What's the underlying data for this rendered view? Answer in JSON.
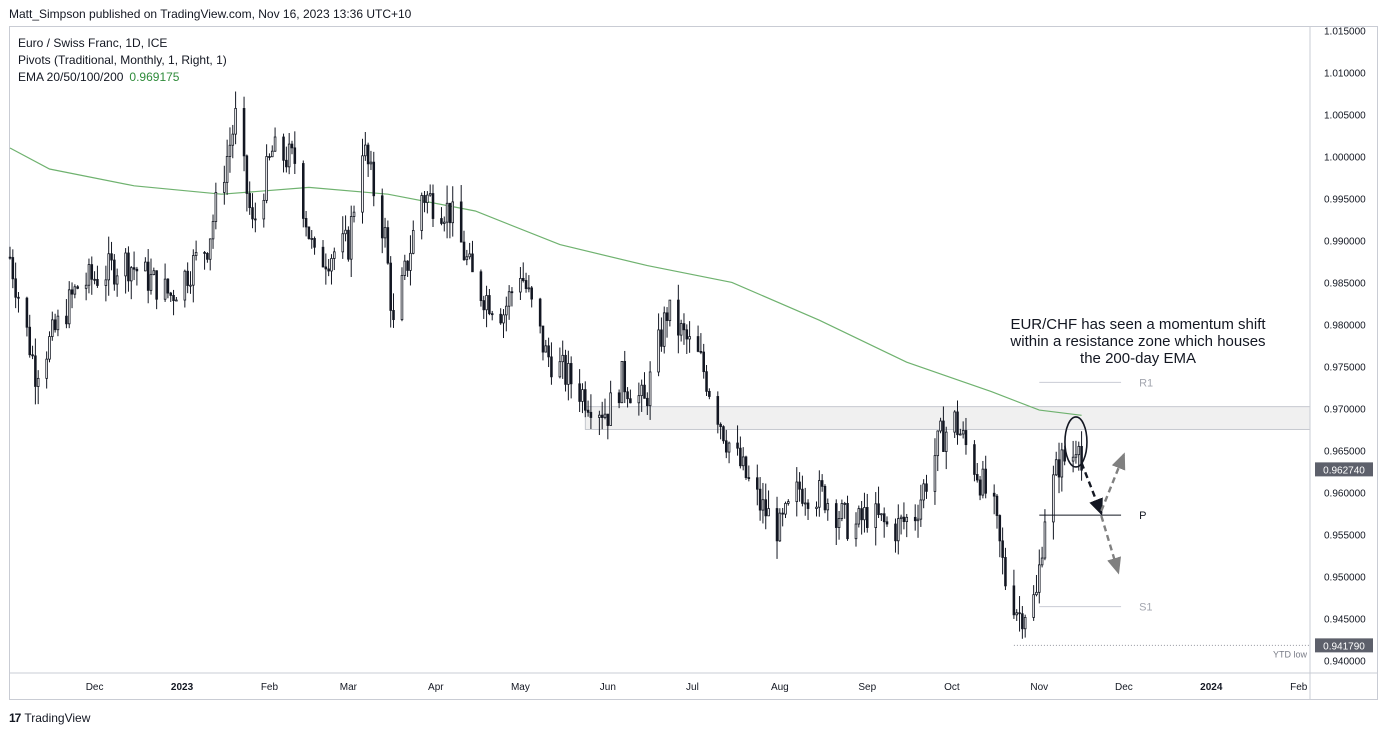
{
  "header": {
    "published": "Matt_Simpson published on TradingView.com, Nov 16, 2023 13:36 UTC+10"
  },
  "legend": {
    "symbol": "Euro / Swiss Franc, 1D, ICE",
    "pivots": "Pivots (Traditional, Monthly, 1, Right, 1)",
    "ema_label": "EMA 20/50/100/200",
    "ema_value": "0.969175"
  },
  "annotation": {
    "text": "EUR/CHF has seen a momentum shift within a resistance zone which houses the 200-day EMA"
  },
  "footer": {
    "brand": "TradingView",
    "logo": "17"
  },
  "colors": {
    "candle": "#131722",
    "ema": "#6fb26f",
    "zone": "#f0f0f0",
    "price_tag": "#5d606b",
    "arrow": "#808080"
  },
  "chart_data": {
    "type": "candlestick",
    "title": "Euro / Swiss Franc, 1D, ICE",
    "ylim": [
      0.9385,
      1.0154
    ],
    "y_ticks": [
      {
        "value": 0.94,
        "label": "0.940000"
      },
      {
        "value": 0.945,
        "label": "0.945000"
      },
      {
        "value": 0.95,
        "label": "0.950000"
      },
      {
        "value": 0.955,
        "label": "0.955000"
      },
      {
        "value": 0.96,
        "label": "0.960000"
      },
      {
        "value": 0.965,
        "label": "0.965000"
      },
      {
        "value": 0.97,
        "label": "0.970000"
      },
      {
        "value": 0.975,
        "label": "0.975000"
      },
      {
        "value": 0.98,
        "label": "0.980000"
      },
      {
        "value": 0.985,
        "label": "0.985000"
      },
      {
        "value": 0.99,
        "label": "0.990000"
      },
      {
        "value": 0.995,
        "label": "0.995000"
      },
      {
        "value": 1.0,
        "label": "1.000000"
      },
      {
        "value": 1.005,
        "label": "1.005000"
      },
      {
        "value": 1.01,
        "label": "1.010000"
      },
      {
        "value": 1.015,
        "label": "1.015000"
      }
    ],
    "x_ticks": [
      {
        "label": "Dec",
        "date": "2022-12-01"
      },
      {
        "label": "2023",
        "date": "2023-01-01"
      },
      {
        "label": "Feb",
        "date": "2023-02-01"
      },
      {
        "label": "Mar",
        "date": "2023-03-01"
      },
      {
        "label": "Apr",
        "date": "2023-04-01"
      },
      {
        "label": "May",
        "date": "2023-05-01"
      },
      {
        "label": "Jun",
        "date": "2023-06-01"
      },
      {
        "label": "Jul",
        "date": "2023-07-01"
      },
      {
        "label": "Aug",
        "date": "2023-08-01"
      },
      {
        "label": "Sep",
        "date": "2023-09-01"
      },
      {
        "label": "Oct",
        "date": "2023-10-01"
      },
      {
        "label": "Nov",
        "date": "2023-11-01"
      },
      {
        "label": "Dec",
        "date": "2023-12-01"
      },
      {
        "label": "2024",
        "date": "2024-01-01"
      },
      {
        "label": "Feb",
        "date": "2024-02-01"
      }
    ],
    "xlim": [
      "2022-11-01",
      "2024-02-05"
    ],
    "price_anchors": [
      [
        "2022-11-01",
        0.988
      ],
      [
        "2022-11-10",
        0.9745
      ],
      [
        "2022-11-25",
        0.9845
      ],
      [
        "2022-12-12",
        0.9875
      ],
      [
        "2022-12-28",
        0.9835
      ],
      [
        "2023-01-10",
        0.9895
      ],
      [
        "2023-01-20",
        1.0045
      ],
      [
        "2023-01-26",
        0.9915
      ],
      [
        "2023-02-02",
        1.0005
      ],
      [
        "2023-02-10",
        0.9995
      ],
      [
        "2023-02-17",
        0.9875
      ],
      [
        "2023-03-01",
        0.9895
      ],
      [
        "2023-03-06",
        1.0015
      ],
      [
        "2023-03-14",
        0.9905
      ],
      [
        "2023-03-17",
        0.9795
      ],
      [
        "2023-03-27",
        0.9955
      ],
      [
        "2023-04-06",
        0.9935
      ],
      [
        "2023-04-15",
        0.9845
      ],
      [
        "2023-04-25",
        0.9815
      ],
      [
        "2023-05-01",
        0.9865
      ],
      [
        "2023-05-10",
        0.9765
      ],
      [
        "2023-05-24",
        0.9715
      ],
      [
        "2023-06-01",
        0.9695
      ],
      [
        "2023-06-06",
        0.9735
      ],
      [
        "2023-06-14",
        0.9705
      ],
      [
        "2023-06-22",
        0.9815
      ],
      [
        "2023-07-04",
        0.9755
      ],
      [
        "2023-07-08",
        0.9715
      ],
      [
        "2023-07-13",
        0.9665
      ],
      [
        "2023-07-25",
        0.9585
      ],
      [
        "2023-08-01",
        0.9555
      ],
      [
        "2023-08-08",
        0.9605
      ],
      [
        "2023-08-17",
        0.9595
      ],
      [
        "2023-08-27",
        0.9555
      ],
      [
        "2023-09-01",
        0.9575
      ],
      [
        "2023-09-10",
        0.9555
      ],
      [
        "2023-09-18",
        0.9575
      ],
      [
        "2023-09-27",
        0.9665
      ],
      [
        "2023-10-02",
        0.9685
      ],
      [
        "2023-10-10",
        0.9625
      ],
      [
        "2023-10-16",
        0.9575
      ],
      [
        "2023-10-20",
        0.9495
      ],
      [
        "2023-10-25",
        0.9455
      ],
      [
        "2023-10-31",
        0.9475
      ],
      [
        "2023-11-03",
        0.9575
      ],
      [
        "2023-11-08",
        0.9635
      ],
      [
        "2023-11-13",
        0.9645
      ],
      [
        "2023-11-15",
        0.9675
      ],
      [
        "2023-11-16",
        0.96274
      ]
    ],
    "ema_200": [
      [
        "2022-11-01",
        1.001
      ],
      [
        "2022-11-15",
        0.9985
      ],
      [
        "2022-12-15",
        0.9965
      ],
      [
        "2023-01-15",
        0.9955
      ],
      [
        "2023-02-15",
        0.9963
      ],
      [
        "2023-03-15",
        0.9955
      ],
      [
        "2023-04-15",
        0.9935
      ],
      [
        "2023-05-15",
        0.9895
      ],
      [
        "2023-06-15",
        0.987
      ],
      [
        "2023-07-15",
        0.985
      ],
      [
        "2023-08-15",
        0.9805
      ],
      [
        "2023-09-15",
        0.9755
      ],
      [
        "2023-10-15",
        0.972
      ],
      [
        "2023-11-01",
        0.9698
      ],
      [
        "2023-11-16",
        0.969175
      ]
    ],
    "resistance_zone": {
      "start": "2023-05-24",
      "end": "2024-02-05",
      "low": 0.9675,
      "high": 0.9702
    },
    "pivot_levels": [
      {
        "name": "R1",
        "value": 0.9731,
        "start": "2023-11-01",
        "end": "2023-11-30"
      },
      {
        "name": "P",
        "value": 0.9573,
        "start": "2023-11-01",
        "end": "2023-11-30"
      },
      {
        "name": "S1",
        "value": 0.9464,
        "start": "2023-11-01",
        "end": "2023-11-30"
      }
    ],
    "ytd_low": {
      "label": "YTD low",
      "value": 0.94179,
      "value_label": "0.941790",
      "date": "2023-10-23"
    },
    "current_price": {
      "value": 0.96274,
      "label": "0.962740"
    },
    "ema_last_label": "0.969175",
    "highlight_ellipse": {
      "date": "2023-11-14",
      "low": 0.9635,
      "high": 0.9685
    },
    "arrows": [
      {
        "from": [
          "2023-11-16",
          0.9635
        ],
        "to": [
          "2023-11-23",
          0.9575
        ],
        "style": "black-dashed"
      },
      {
        "from": [
          "2023-11-23",
          0.9578
        ],
        "to": [
          "2023-12-01",
          0.9645
        ],
        "style": "grey-dashed"
      },
      {
        "from": [
          "2023-11-23",
          0.9572
        ],
        "to": [
          "2023-11-29",
          0.9505
        ],
        "style": "grey-dashed"
      }
    ]
  }
}
